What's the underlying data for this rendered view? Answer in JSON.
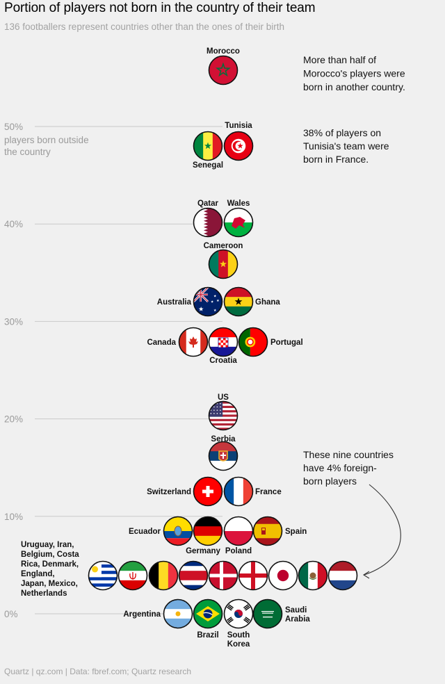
{
  "title": "Portion of players not born in the country of their team",
  "subtitle": "136 footballers represent countries other than the ones of their birth",
  "source": "Quartz | qz.com | Data: fbref.com; Quartz research",
  "annotations": {
    "morocco": [
      "More than half of",
      "Morocco's players were",
      "born in another country."
    ],
    "tunisia": [
      "38% of players on",
      "Tunisia's team were",
      "born in France."
    ],
    "nine": [
      "These nine countries",
      "have 4% foreign-",
      "born players"
    ]
  },
  "chart_data": {
    "type": "scatter",
    "title": "Portion of players not born in the country of their team",
    "ylabel": "players born outside the country",
    "ylim": [
      0,
      57
    ],
    "y_ticks": [
      {
        "value": 0,
        "label": "0%"
      },
      {
        "value": 10,
        "label": "10%"
      },
      {
        "value": 20,
        "label": "20%"
      },
      {
        "value": 30,
        "label": "30%"
      },
      {
        "value": 40,
        "label": "40%"
      },
      {
        "value": 50,
        "label": "50%"
      }
    ],
    "y_axis_caption": [
      "players born outside",
      "the country"
    ],
    "grid": true,
    "rows": [
      {
        "value": 54,
        "countries": [
          "Morocco"
        ]
      },
      {
        "value": 38,
        "countries": [
          "Senegal",
          "Tunisia"
        ]
      },
      {
        "value": 38,
        "countries": [
          "Qatar",
          "Wales"
        ]
      },
      {
        "value": 35,
        "countries": [
          "Cameroon"
        ]
      },
      {
        "value": 31,
        "countries": [
          "Australia",
          "Ghana"
        ]
      },
      {
        "value": 27,
        "countries": [
          "Canada",
          "Croatia",
          "Portugal"
        ]
      },
      {
        "value": 20,
        "countries": [
          "US"
        ]
      },
      {
        "value": 16,
        "countries": [
          "Serbia"
        ]
      },
      {
        "value": 12,
        "countries": [
          "Switzerland",
          "France"
        ]
      },
      {
        "value": 8,
        "countries": [
          "Ecuador",
          "Germany",
          "Poland",
          "Spain"
        ]
      },
      {
        "value": 4,
        "countries": [
          "Uruguay",
          "Iran",
          "Belgium",
          "Costa Rica",
          "Denmark",
          "England",
          "Japan",
          "Mexico",
          "Netherlands"
        ]
      },
      {
        "value": 0,
        "countries": [
          "Argentina",
          "Brazil",
          "South Korea",
          "Saudi Arabia"
        ]
      }
    ],
    "labels": {
      "Morocco": [
        "Morocco"
      ],
      "Senegal": [
        "Senegal"
      ],
      "Tunisia": [
        "Tunisia"
      ],
      "Qatar": [
        "Qatar"
      ],
      "Wales": [
        "Wales"
      ],
      "Cameroon": [
        "Cameroon"
      ],
      "Australia": [
        "Australia"
      ],
      "Ghana": [
        "Ghana"
      ],
      "Canada": [
        "Canada"
      ],
      "Croatia": [
        "Croatia"
      ],
      "Portugal": [
        "Portugal"
      ],
      "US": [
        "US"
      ],
      "Serbia": [
        "Serbia"
      ],
      "Switzerland": [
        "Switzerland"
      ],
      "France": [
        "France"
      ],
      "Ecuador": [
        "Ecuador"
      ],
      "Germany": [
        "Germany"
      ],
      "Poland": [
        "Poland"
      ],
      "Spain": [
        "Spain"
      ],
      "Argentina": [
        "Argentina"
      ],
      "Brazil": [
        "Brazil"
      ],
      "South Korea": [
        "South",
        "Korea"
      ],
      "Saudi Arabia": [
        "Saudi",
        "Arabia"
      ]
    },
    "group_label": [
      "Uruguay, Iran,",
      "Belgium, Costa",
      "Rica, Denmark,",
      "England,",
      "Japan, Mexico,",
      "Netherlands"
    ]
  }
}
